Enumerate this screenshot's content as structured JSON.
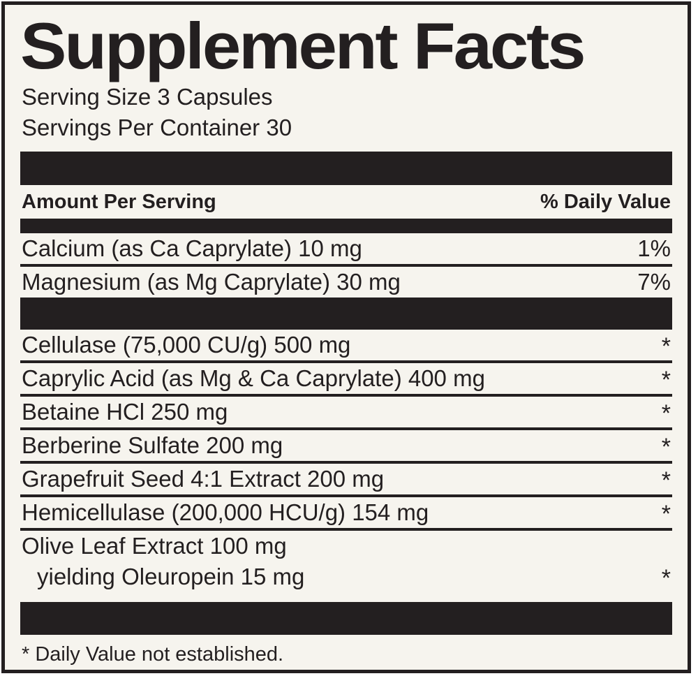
{
  "label": {
    "title": "Supplement Facts",
    "serving_size": "Serving Size 3 Capsules",
    "servings_per_container": "Servings Per Container 30",
    "column_headers": {
      "left": "Amount Per Serving",
      "right": "% Daily Value"
    },
    "minerals": [
      {
        "name": "Calcium (as Ca Caprylate) 10 mg",
        "daily_value": "1%"
      },
      {
        "name": "Magnesium (as Mg Caprylate) 30 mg",
        "daily_value": "7%"
      }
    ],
    "blend": [
      {
        "name": "Cellulase (75,000 CU/g) 500 mg",
        "daily_value": "*"
      },
      {
        "name": "Caprylic Acid (as Mg & Ca Caprylate) 400 mg",
        "daily_value": "*"
      },
      {
        "name": "Betaine HCl 250 mg",
        "daily_value": "*"
      },
      {
        "name": "Berberine Sulfate 200 mg",
        "daily_value": "*"
      },
      {
        "name": "Grapefruit Seed 4:1 Extract 200 mg",
        "daily_value": "*"
      },
      {
        "name": "Hemicellulase (200,000 HCU/g) 154 mg",
        "daily_value": "*"
      },
      {
        "name": "Olive Leaf Extract 100 mg",
        "sub": "yielding Oleuropein 15 mg",
        "daily_value": "*"
      }
    ],
    "footnote": "* Daily Value not established.",
    "colors": {
      "ink": "#231f20",
      "paper": "#f6f4ee"
    }
  }
}
